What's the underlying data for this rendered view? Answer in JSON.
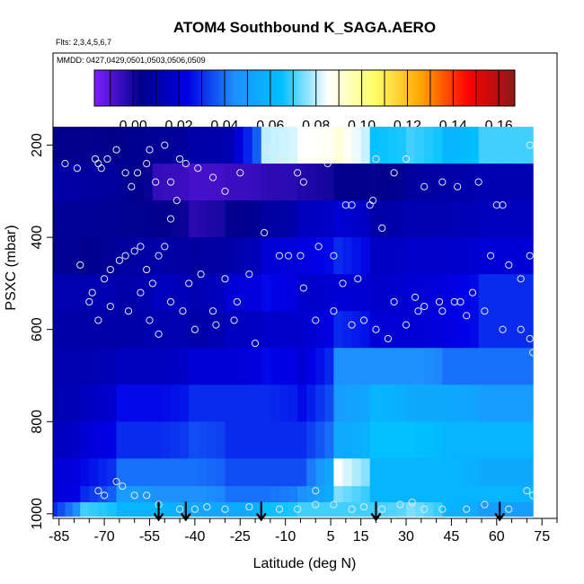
{
  "chart_data": {
    "type": "heatmap",
    "title": "ATOM4 Southbound K_SAGA.AERO",
    "flights_note": "Flts: 2,3,4,5,6,7",
    "dates_note": "MMDD: 0427,0429,0501,0503,0506,0509",
    "xlabel": "Latitude (deg N)",
    "ylabel": "PSXC (mbar)",
    "xlim": [
      -87,
      80
    ],
    "ylim": [
      1010,
      0
    ],
    "x_ticks": [
      -85,
      -70,
      -55,
      -40,
      -25,
      -10,
      5,
      15,
      30,
      45,
      60,
      75
    ],
    "x_tick_labels": [
      "-85",
      "-70",
      "-55",
      "-40",
      "-25",
      "-10",
      "5",
      "15",
      "30",
      "45",
      "60",
      "75"
    ],
    "x_minor_step": 5,
    "y_ticks": [
      200,
      400,
      600,
      800,
      1000
    ],
    "y_tick_labels": [
      "200",
      "400",
      "600",
      "800",
      "1000"
    ],
    "colorbar": {
      "min": -0.017,
      "max": 0.167,
      "ticks": [
        0.0,
        0.02,
        0.04,
        0.06,
        0.08,
        0.1,
        0.12,
        0.14,
        0.16
      ],
      "tick_labels": [
        "0.00",
        "0.02",
        "0.04",
        "0.06",
        "0.08",
        "0.10",
        "0.12",
        "0.14",
        "0.16"
      ],
      "colors": [
        "#7f1fff",
        "#00008b",
        "#0000e6",
        "#1e90ff",
        "#00bfff",
        "#ffffff",
        "#ffff66",
        "#ffa500",
        "#ff0000",
        "#8b1a1a"
      ]
    },
    "grid": {
      "x_edges": [
        -84,
        -72,
        -60,
        -48,
        -36,
        -24,
        -12,
        0,
        12,
        24,
        36,
        48,
        60,
        72
      ],
      "y_edges": [
        160,
        240,
        320,
        400,
        480,
        560,
        640,
        720,
        800,
        880,
        940,
        975,
        1005
      ],
      "values": [
        [
          0.004,
          0.003,
          0.004,
          0.006,
          0.01,
          0.012,
          0.08,
          0.085,
          0.09,
          0.065,
          0.07,
          0.06,
          0.07
        ],
        [
          0.01,
          0.008,
          0.006,
          -0.005,
          -0.008,
          -0.006,
          -0.004,
          -0.002,
          0.004,
          0.003,
          0.008,
          0.01,
          0.012
        ],
        [
          0.006,
          0.006,
          0.005,
          0.004,
          -0.003,
          0.003,
          0.008,
          0.015,
          0.02,
          0.01,
          0.012,
          0.012,
          0.015
        ],
        [
          0.006,
          0.004,
          0.008,
          0.01,
          0.008,
          0.01,
          0.02,
          0.022,
          0.03,
          0.016,
          0.018,
          0.018,
          0.02
        ],
        [
          0.012,
          0.012,
          0.01,
          0.015,
          0.012,
          0.02,
          0.025,
          0.018,
          0.02,
          0.018,
          0.02,
          0.022,
          0.03
        ],
        [
          0.01,
          0.01,
          0.01,
          0.012,
          0.01,
          0.015,
          0.018,
          0.018,
          0.03,
          0.02,
          0.02,
          0.022,
          0.03
        ],
        [
          0.012,
          0.012,
          0.015,
          0.015,
          0.02,
          0.02,
          0.025,
          0.02,
          0.045,
          0.045,
          0.045,
          0.04,
          0.04
        ],
        [
          0.012,
          0.015,
          0.025,
          0.025,
          0.03,
          0.03,
          0.03,
          0.025,
          0.05,
          0.06,
          0.055,
          0.055,
          0.05
        ],
        [
          0.015,
          0.02,
          0.03,
          0.03,
          0.035,
          0.03,
          0.03,
          0.03,
          0.055,
          0.065,
          0.065,
          0.06,
          0.06
        ],
        [
          0.02,
          0.025,
          0.04,
          0.04,
          0.04,
          0.035,
          0.035,
          0.035,
          0.085,
          0.06,
          0.06,
          0.06,
          0.055
        ],
        [
          0.02,
          0.03,
          0.05,
          0.045,
          0.045,
          0.04,
          0.04,
          0.045,
          0.075,
          0.06,
          0.06,
          0.06,
          0.06
        ],
        [
          0.03,
          0.07,
          0.06,
          0.06,
          0.055,
          0.055,
          0.065,
          0.07,
          0.07,
          0.07,
          0.075,
          0.06,
          0.05
        ]
      ]
    },
    "samples": [
      [
        -83,
        240
      ],
      [
        -79,
        250
      ],
      [
        -73,
        230
      ],
      [
        -72,
        240
      ],
      [
        -71,
        250
      ],
      [
        -69,
        230
      ],
      [
        -66,
        210
      ],
      [
        -63,
        260
      ],
      [
        -61,
        290
      ],
      [
        -59,
        260
      ],
      [
        -56,
        240
      ],
      [
        -55,
        210
      ],
      [
        -53,
        280
      ],
      [
        -50,
        200
      ],
      [
        -48,
        280
      ],
      [
        -45,
        230
      ],
      [
        -43,
        240
      ],
      [
        -39,
        250
      ],
      [
        -34,
        270
      ],
      [
        -30,
        300
      ],
      [
        -25,
        260
      ],
      [
        -16,
        210
      ],
      [
        -12,
        230
      ],
      [
        -6,
        260
      ],
      [
        -4,
        280
      ],
      [
        4,
        240
      ],
      [
        10,
        330
      ],
      [
        12,
        330
      ],
      [
        18,
        330
      ],
      [
        20,
        230
      ],
      [
        26,
        260
      ],
      [
        30,
        230
      ],
      [
        36,
        290
      ],
      [
        42,
        280
      ],
      [
        47,
        290
      ],
      [
        54,
        280
      ],
      [
        60,
        330
      ],
      [
        62,
        330
      ],
      [
        71,
        200
      ],
      [
        -78,
        460
      ],
      [
        -74,
        520
      ],
      [
        -70,
        490
      ],
      [
        -68,
        470
      ],
      [
        -65,
        450
      ],
      [
        -63,
        440
      ],
      [
        -60,
        430
      ],
      [
        -58,
        420
      ],
      [
        -56,
        470
      ],
      [
        -54,
        500
      ],
      [
        -52,
        440
      ],
      [
        -50,
        420
      ],
      [
        -48,
        360
      ],
      [
        -46,
        320
      ],
      [
        -42,
        500
      ],
      [
        -38,
        480
      ],
      [
        -34,
        560
      ],
      [
        -30,
        490
      ],
      [
        -26,
        540
      ],
      [
        -22,
        480
      ],
      [
        -17,
        390
      ],
      [
        -12,
        440
      ],
      [
        -9,
        440
      ],
      [
        -5,
        440
      ],
      [
        1,
        420
      ],
      [
        6,
        440
      ],
      [
        9,
        500
      ],
      [
        14,
        490
      ],
      [
        19,
        320
      ],
      [
        22,
        380
      ],
      [
        26,
        540
      ],
      [
        33,
        530
      ],
      [
        36,
        550
      ],
      [
        41,
        540
      ],
      [
        48,
        540
      ],
      [
        52,
        520
      ],
      [
        58,
        440
      ],
      [
        64,
        460
      ],
      [
        68,
        490
      ],
      [
        71,
        440
      ],
      [
        -75,
        540
      ],
      [
        -72,
        580
      ],
      [
        -68,
        550
      ],
      [
        -62,
        560
      ],
      [
        -58,
        520
      ],
      [
        -55,
        580
      ],
      [
        -52,
        610
      ],
      [
        -48,
        540
      ],
      [
        -44,
        560
      ],
      [
        -40,
        600
      ],
      [
        -33,
        590
      ],
      [
        -27,
        580
      ],
      [
        -20,
        630
      ],
      [
        -4,
        510
      ],
      [
        0,
        580
      ],
      [
        6,
        560
      ],
      [
        12,
        590
      ],
      [
        16,
        580
      ],
      [
        20,
        600
      ],
      [
        24,
        620
      ],
      [
        30,
        590
      ],
      [
        34,
        560
      ],
      [
        42,
        560
      ],
      [
        46,
        540
      ],
      [
        50,
        570
      ],
      [
        56,
        560
      ],
      [
        62,
        600
      ],
      [
        68,
        600
      ],
      [
        71,
        620
      ],
      [
        72,
        650
      ],
      [
        -72,
        950
      ],
      [
        -70,
        960
      ],
      [
        -66,
        930
      ],
      [
        -64,
        940
      ],
      [
        -60,
        960
      ],
      [
        -56,
        960
      ],
      [
        -52,
        980
      ],
      [
        -45,
        990
      ],
      [
        -40,
        990
      ],
      [
        -36,
        985
      ],
      [
        -30,
        990
      ],
      [
        -22,
        985
      ],
      [
        -12,
        990
      ],
      [
        -6,
        990
      ],
      [
        0,
        950
      ],
      [
        0,
        980
      ],
      [
        6,
        980
      ],
      [
        12,
        990
      ],
      [
        16,
        985
      ],
      [
        22,
        990
      ],
      [
        28,
        980
      ],
      [
        32,
        975
      ],
      [
        36,
        990
      ],
      [
        42,
        990
      ],
      [
        50,
        990
      ],
      [
        56,
        980
      ],
      [
        64,
        990
      ],
      [
        70,
        950
      ],
      [
        72,
        960
      ]
    ],
    "markers": [
      -52,
      -43,
      -18,
      20,
      61
    ],
    "marker_pressure": 1005
  }
}
